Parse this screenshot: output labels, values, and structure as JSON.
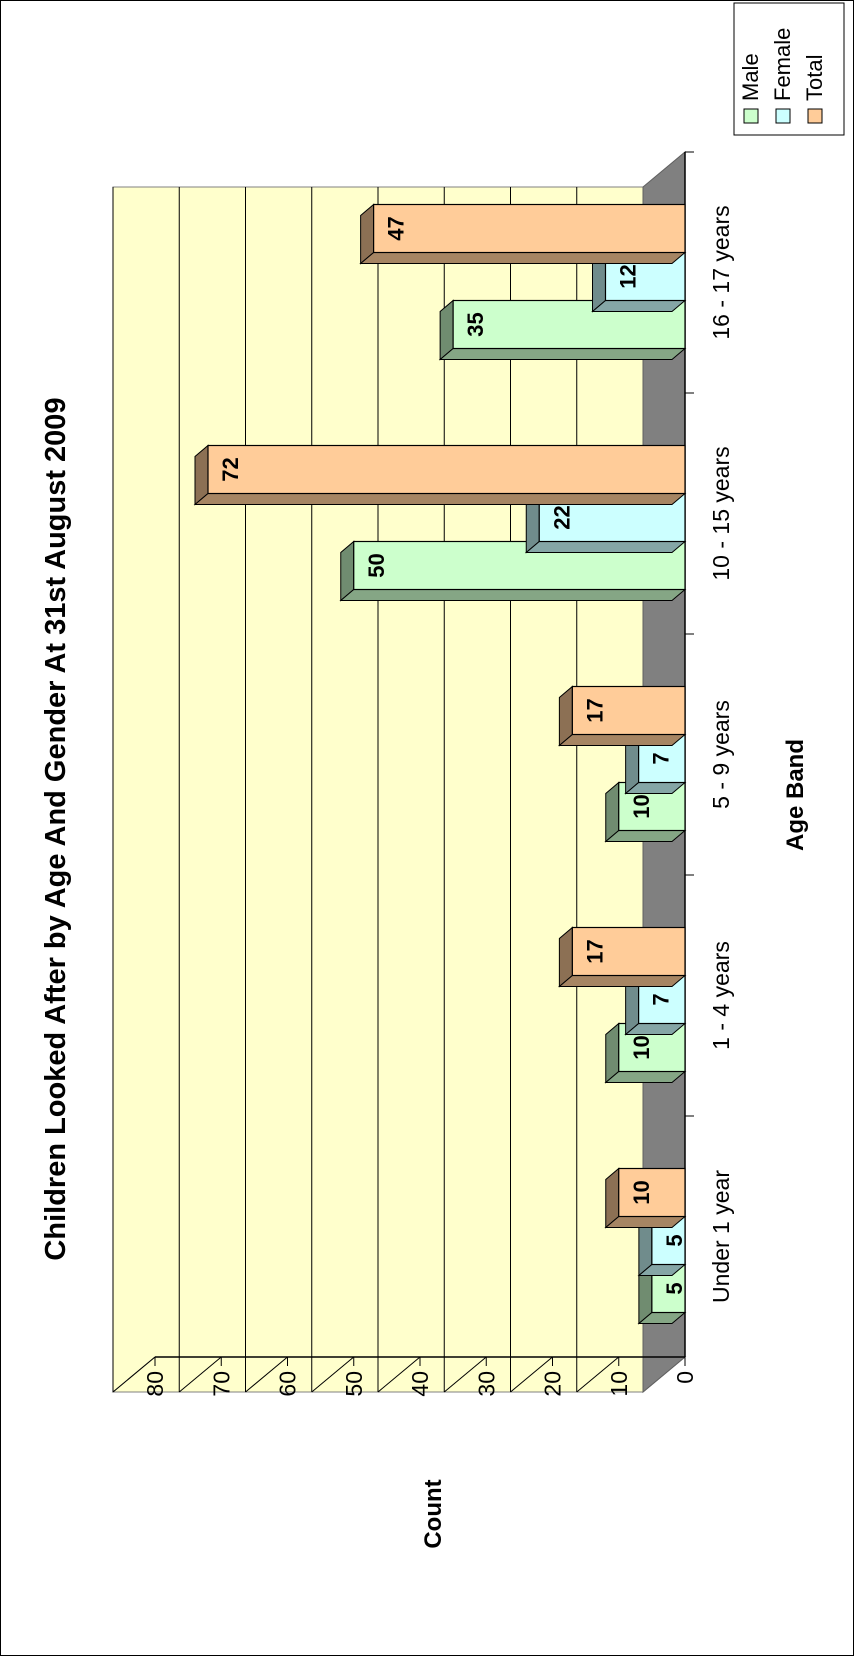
{
  "chart_data": {
    "type": "bar",
    "title": "Children Looked After by Age And Gender At 31st August 2009",
    "xlabel": "Age Band",
    "ylabel": "Count",
    "categories": [
      "Under 1 year",
      "1 - 4 years",
      "5 - 9 years",
      "10 - 15 years",
      "16 - 17 years"
    ],
    "series": [
      {
        "name": "Male",
        "values": [
          5,
          10,
          10,
          50,
          35
        ],
        "color": "#ccffcc"
      },
      {
        "name": "Female",
        "values": [
          5,
          7,
          7,
          22,
          12
        ],
        "color": "#ccffff"
      },
      {
        "name": "Total",
        "values": [
          10,
          17,
          17,
          72,
          47
        ],
        "color": "#ffcc99"
      }
    ],
    "y_ticks": [
      "0",
      "10",
      "20",
      "30",
      "40",
      "50",
      "60",
      "70",
      "80"
    ],
    "ylim": [
      0,
      80
    ],
    "grid": true,
    "three_d": true,
    "data_labels": true,
    "legend_position": "right",
    "wall_color": "#ffffcc",
    "floor_color": "#808080"
  }
}
